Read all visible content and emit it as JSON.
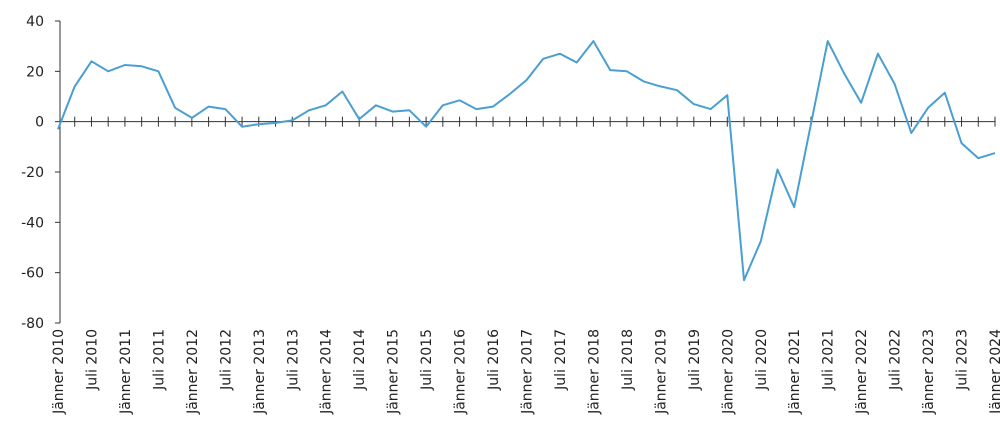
{
  "chart_data": {
    "type": "line",
    "categories": [
      "Jänner 2010",
      null,
      "Juli 2010",
      null,
      "Jänner 2011",
      null,
      "Juli 2011",
      null,
      "Jänner 2012",
      null,
      "Juli 2012",
      null,
      "Jänner 2013",
      null,
      "Juli 2013",
      null,
      "Jänner 2014",
      null,
      "Juli 2014",
      null,
      "Jänner 2015",
      null,
      "Juli 2015",
      null,
      "Jänner 2016",
      null,
      "Juli 2016",
      null,
      "Jänner 2017",
      null,
      "Juli 2017",
      null,
      "Jänner 2018",
      null,
      "Juli 2018",
      null,
      "Jänner 2019",
      null,
      "Juli 2019",
      null,
      "Jänner 2020",
      null,
      "Juli 2020",
      null,
      "Jänner 2021",
      null,
      "Juli 2021",
      null,
      "Jänner 2022",
      null,
      "Juli 2022",
      null,
      "Jänner 2023",
      null,
      "Juli 2023",
      null,
      "Jänner 2024"
    ],
    "values": [
      -3,
      14,
      24,
      20,
      22.5,
      22,
      20,
      5.5,
      1.5,
      6,
      5,
      -2,
      -1,
      -0.5,
      0.5,
      4.5,
      6.5,
      12,
      1,
      6.5,
      4,
      4.5,
      -2,
      6.5,
      8.5,
      5,
      6,
      11,
      16.5,
      25,
      27,
      23.5,
      32,
      20.5,
      20,
      16,
      14,
      12.5,
      7,
      5,
      10.5,
      -63,
      -47.5,
      -19,
      -34,
      -1,
      32,
      19,
      7.5,
      27,
      15,
      -4.5,
      5.5,
      11.5,
      -8.5,
      -14.5,
      -12.5
    ],
    "color": "#4a9fd0",
    "ylim": [
      -80,
      40
    ],
    "yticks": [
      -80,
      -60,
      -40,
      -20,
      0,
      20,
      40
    ]
  }
}
